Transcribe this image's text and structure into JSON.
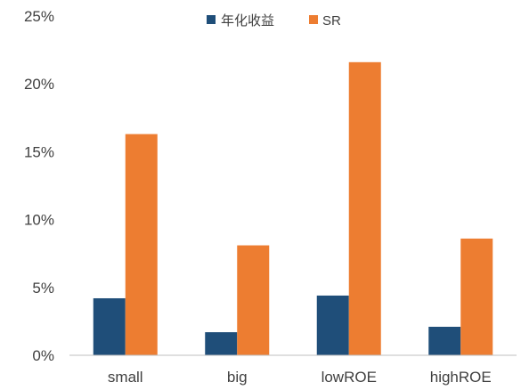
{
  "chart_data": {
    "type": "bar",
    "title": "",
    "xlabel": "",
    "ylabel": "",
    "categories": [
      "small",
      "big",
      "lowROE",
      "highROE"
    ],
    "series": [
      {
        "name": "年化收益",
        "color": "#1f4e79",
        "values": [
          4.2,
          1.7,
          4.4,
          2.1
        ]
      },
      {
        "name": "SR",
        "color": "#ed7d31",
        "values": [
          16.3,
          8.1,
          21.6,
          8.6
        ]
      }
    ],
    "ylim": [
      0,
      25
    ],
    "yticks": [
      "0%",
      "5%",
      "10%",
      "15%",
      "20%",
      "25%"
    ],
    "ytick_values": [
      0,
      5,
      10,
      15,
      20,
      25
    ],
    "legend_position": "top",
    "grid": false
  }
}
